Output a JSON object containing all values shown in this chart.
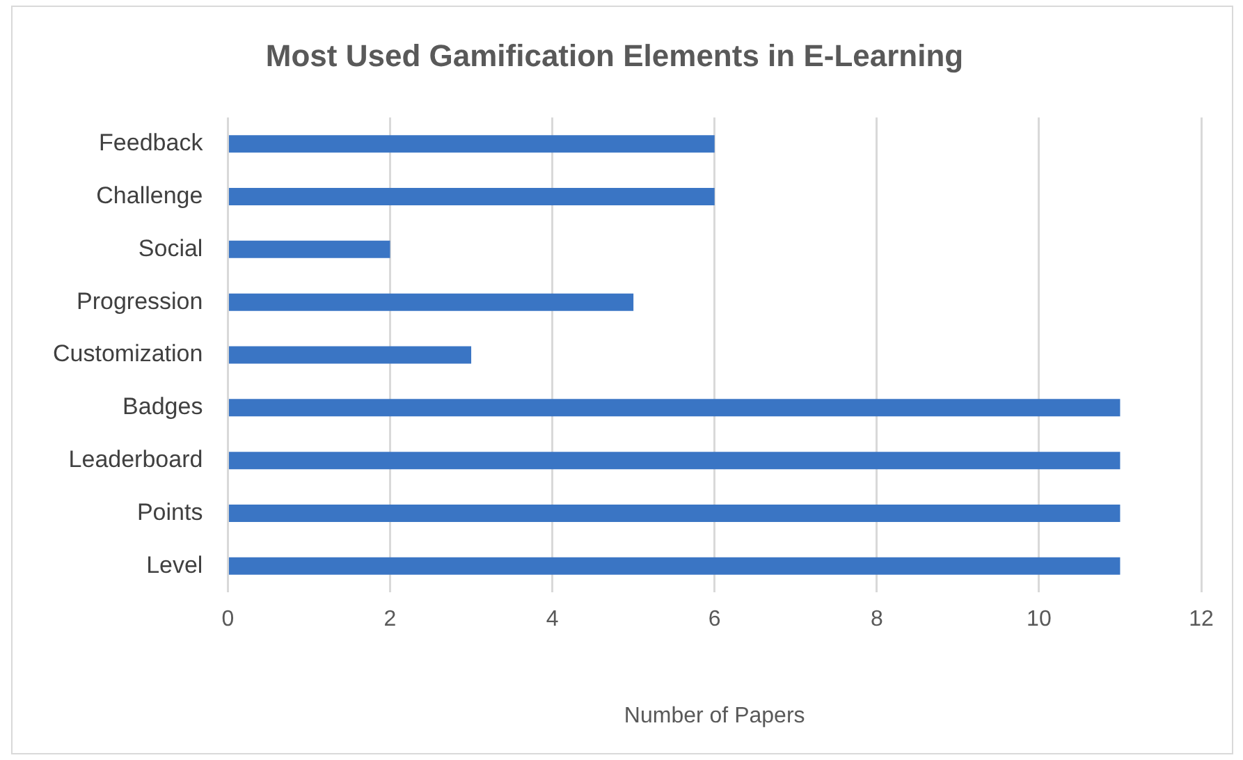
{
  "chart_data": {
    "type": "bar",
    "orientation": "horizontal",
    "title": "Most Used Gamification Elements in E-Learning",
    "xlabel": "Number of Papers",
    "categories": [
      "Feedback",
      "Challenge",
      "Social",
      "Progression",
      "Customization",
      "Badges",
      "Leaderboard",
      "Points",
      "Level"
    ],
    "values": [
      6,
      6,
      2,
      5,
      3,
      11,
      11,
      11,
      11
    ],
    "color": "#3a75c4",
    "xlim": [
      0,
      12
    ],
    "xticks": [
      0,
      2,
      4,
      6,
      8,
      10,
      12
    ],
    "grid": "x",
    "legend": false
  }
}
